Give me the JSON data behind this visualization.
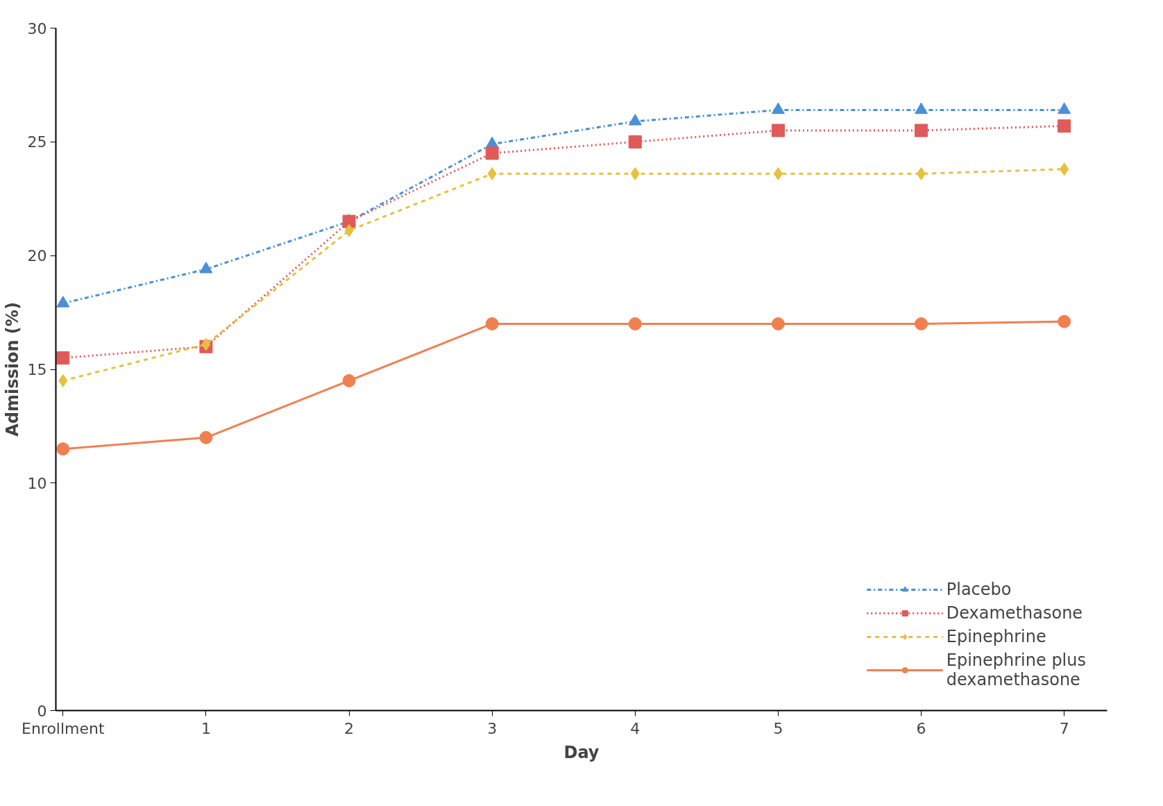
{
  "chart_data": {
    "type": "line",
    "xlabel": "Day",
    "ylabel": "Admission (%)",
    "categories": [
      "Enrollment",
      "1",
      "2",
      "3",
      "4",
      "5",
      "6",
      "7"
    ],
    "ylim": [
      0,
      30
    ],
    "yticks": [
      0,
      10,
      15,
      20,
      25,
      30
    ],
    "grid": false,
    "legend": "bottom right",
    "series": [
      {
        "name": "Placebo",
        "color": "#4a8fd8",
        "marker": "triangle",
        "line_style": "dashdot",
        "values": [
          17.9,
          19.4,
          21.5,
          24.9,
          25.9,
          26.4,
          26.4,
          26.4
        ]
      },
      {
        "name": "Dexamethasone",
        "color": "#e05a5a",
        "marker": "square",
        "line_style": "dotted",
        "values": [
          15.5,
          16.0,
          21.5,
          24.5,
          25.0,
          25.5,
          25.5,
          25.7
        ]
      },
      {
        "name": "Epinephrine",
        "color": "#e6c040",
        "marker": "diamond",
        "line_style": "dashed",
        "values": [
          14.5,
          16.1,
          21.1,
          23.6,
          23.6,
          23.6,
          23.6,
          23.8
        ]
      },
      {
        "name": "Epinephrine plus\ndexamethasone",
        "color": "#f08050",
        "marker": "circle",
        "line_style": "solid",
        "values": [
          11.5,
          12.0,
          14.5,
          17.0,
          17.0,
          17.0,
          17.0,
          17.1
        ]
      }
    ]
  }
}
